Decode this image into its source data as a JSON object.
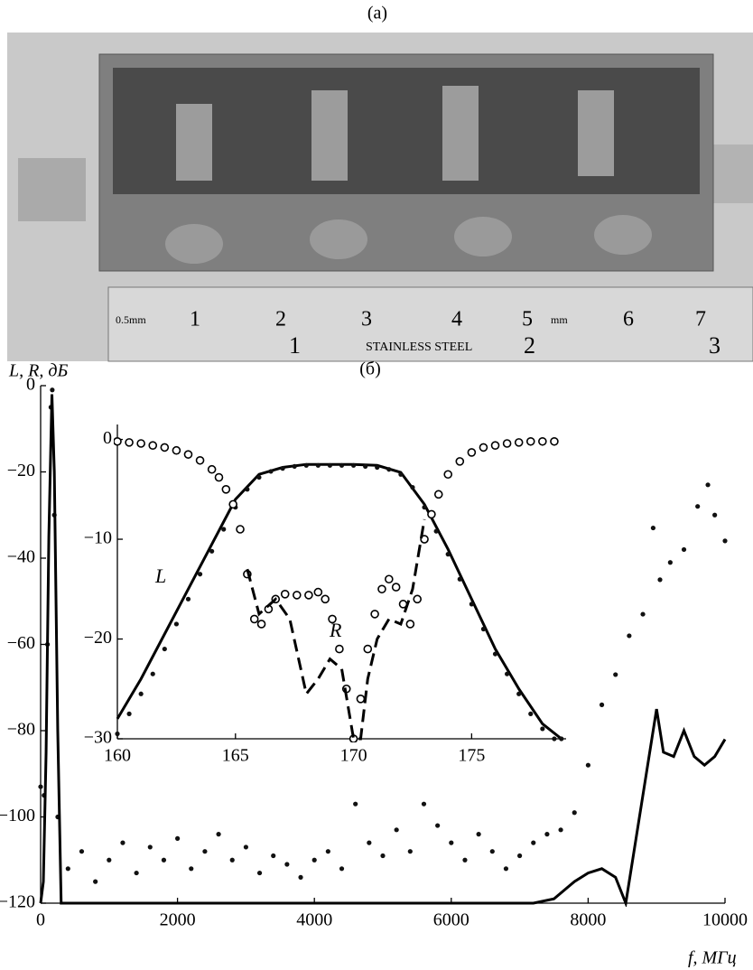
{
  "figure": {
    "panel_a_label": "(a)",
    "panel_b_label": "(б)"
  },
  "photo": {
    "ruler_top": [
      "0.5mm",
      "1",
      "2",
      "3",
      "4",
      "5",
      "mm",
      "6",
      "7"
    ],
    "ruler_bottom": [
      "1",
      "STAINLESS STEEL",
      "2",
      "3"
    ]
  },
  "chart_data": [
    {
      "type": "line",
      "y_label": "L, R, дБ",
      "x_label": "f, МГц",
      "xlim": [
        0,
        10000
      ],
      "ylim": [
        -120,
        0
      ],
      "xticks": [
        0,
        2000,
        4000,
        6000,
        8000,
        10000
      ],
      "yticks": [
        {
          "value": 0,
          "label": "0"
        },
        {
          "value": -20,
          "label": "−20"
        },
        {
          "value": -40,
          "label": "−40"
        },
        {
          "value": -60,
          "label": "−60"
        },
        {
          "value": -80,
          "label": "−80"
        },
        {
          "value": -100,
          "label": "−100"
        },
        {
          "value": -120,
          "label": "−120"
        }
      ],
      "series": [
        {
          "style": "dots",
          "color": "#111111",
          "x": [
            0,
            50,
            100,
            150,
            170,
            200,
            250,
            400,
            600,
            800,
            1000,
            1200,
            1400,
            1600,
            1800,
            2000,
            2200,
            2400,
            2600,
            2800,
            3000,
            3200,
            3400,
            3600,
            3800,
            4000,
            4200,
            4400,
            4600,
            4800,
            5000,
            5200,
            5400,
            5600,
            5800,
            6000,
            6200,
            6400,
            6600,
            6800,
            7000,
            7200,
            7400,
            7600,
            7800,
            8000,
            8200,
            8400,
            8600,
            8800,
            8950,
            9050,
            9200,
            9400,
            9600,
            9750,
            9850,
            10000
          ],
          "values": [
            -93,
            -95,
            -60,
            -5,
            -1,
            -30,
            -100,
            -112,
            -108,
            -115,
            -110,
            -106,
            -113,
            -107,
            -110,
            -105,
            -112,
            -108,
            -104,
            -110,
            -107,
            -113,
            -109,
            -111,
            -114,
            -110,
            -108,
            -112,
            -97,
            -106,
            -109,
            -103,
            -108,
            -97,
            -102,
            -106,
            -110,
            -104,
            -108,
            -112,
            -109,
            -106,
            -104,
            -103,
            -99,
            -88,
            -74,
            -67,
            -58,
            -53,
            -33,
            -45,
            -41,
            -38,
            -28,
            -23,
            -30,
            -36
          ]
        },
        {
          "style": "line",
          "color": "#000000",
          "x": [
            0,
            40,
            80,
            120,
            165,
            200,
            250,
            300,
            7200,
            7500,
            7800,
            8000,
            8200,
            8400,
            8550,
            8700,
            8850,
            9000,
            9100,
            9250,
            9400,
            9550,
            9700,
            9850,
            10000
          ],
          "values": [
            -120,
            -115,
            -85,
            -35,
            -2,
            -20,
            -80,
            -120,
            -120,
            -119,
            -115,
            -113,
            -112,
            -114,
            -120,
            -105,
            -90,
            -75,
            -85,
            -86,
            -80,
            -86,
            -88,
            -86,
            -82
          ]
        }
      ]
    },
    {
      "type": "line",
      "xlim": [
        160,
        179
      ],
      "ylim": [
        -30,
        1.5
      ],
      "xticks": [
        160,
        165,
        170,
        175
      ],
      "yticks": [
        {
          "value": 0,
          "label": "0"
        },
        {
          "value": -10,
          "label": "−10"
        },
        {
          "value": -20,
          "label": "−20"
        },
        {
          "value": -30,
          "label": "−30"
        }
      ],
      "annotations": [
        "L",
        "R"
      ],
      "series": [
        {
          "style": "line",
          "color": "#000000",
          "x": [
            160,
            161,
            162,
            163,
            164,
            165,
            166,
            167,
            168,
            169,
            170,
            171,
            172,
            173,
            174,
            175,
            176,
            177,
            178,
            178.8
          ],
          "values": [
            -28,
            -24,
            -19.5,
            -15,
            -10.5,
            -6,
            -3.5,
            -2.8,
            -2.5,
            -2.5,
            -2.5,
            -2.6,
            -3.3,
            -6.5,
            -11,
            -16,
            -21,
            -25,
            -28.5,
            -30
          ]
        },
        {
          "style": "dots",
          "color": "#111111",
          "x": [
            160,
            160.5,
            161,
            161.5,
            162,
            162.5,
            163,
            163.5,
            164,
            164.5,
            165,
            165.5,
            166,
            166.5,
            167,
            167.5,
            168,
            168.5,
            169,
            169.5,
            170,
            170.5,
            171,
            171.5,
            172,
            172.5,
            173,
            173.5,
            174,
            174.5,
            175,
            175.5,
            176,
            176.5,
            177,
            177.5,
            178,
            178.5,
            178.8
          ],
          "values": [
            -29.5,
            -27.5,
            -25.5,
            -23.5,
            -21,
            -18.5,
            -16,
            -13.5,
            -11.2,
            -9,
            -6.8,
            -5,
            -3.8,
            -3.2,
            -2.9,
            -2.7,
            -2.6,
            -2.6,
            -2.6,
            -2.6,
            -2.6,
            -2.7,
            -2.8,
            -3,
            -3.5,
            -4.8,
            -6.8,
            -9.2,
            -11.5,
            -14,
            -16.5,
            -19,
            -21.5,
            -23.5,
            -25.5,
            -27.5,
            -29,
            -30,
            -30
          ]
        },
        {
          "style": "circles",
          "color": "#000000",
          "x": [
            160,
            160.5,
            161,
            161.5,
            162,
            162.5,
            163,
            163.5,
            164,
            164.3,
            164.6,
            164.9,
            165.2,
            165.5,
            165.8,
            166.1,
            166.4,
            166.7,
            167.1,
            167.6,
            168.1,
            168.5,
            168.8,
            169.1,
            169.4,
            169.7,
            170,
            170.3,
            170.6,
            170.9,
            171.2,
            171.5,
            171.8,
            172.1,
            172.4,
            172.7,
            173,
            173.3,
            173.6,
            174,
            174.5,
            175,
            175.5,
            176,
            176.5,
            177,
            177.5,
            178,
            178.5
          ],
          "values": [
            -0.2,
            -0.3,
            -0.4,
            -0.6,
            -0.8,
            -1.1,
            -1.5,
            -2.1,
            -3,
            -3.8,
            -5,
            -6.5,
            -9,
            -13.5,
            -18,
            -18.5,
            -17,
            -16,
            -15.5,
            -15.6,
            -15.6,
            -15.3,
            -16,
            -18,
            -21,
            -25,
            -30,
            -26,
            -21,
            -17.5,
            -15,
            -14,
            -14.8,
            -16.5,
            -18.5,
            -16,
            -10,
            -7.5,
            -5.5,
            -3.5,
            -2.2,
            -1.3,
            -0.8,
            -0.6,
            -0.4,
            -0.3,
            -0.2,
            -0.2,
            -0.2
          ]
        },
        {
          "style": "dashed",
          "color": "#000000",
          "x": [
            165.5,
            166,
            166.7,
            167.3,
            168,
            168.5,
            169,
            169.5,
            170,
            170.3,
            170.6,
            171,
            171.5,
            172,
            172.5,
            173
          ],
          "values": [
            -13,
            -17.5,
            -16,
            -18,
            -25.5,
            -24,
            -22,
            -23,
            -30,
            -30,
            -24,
            -20,
            -18,
            -18.5,
            -15,
            -8
          ]
        }
      ]
    }
  ]
}
